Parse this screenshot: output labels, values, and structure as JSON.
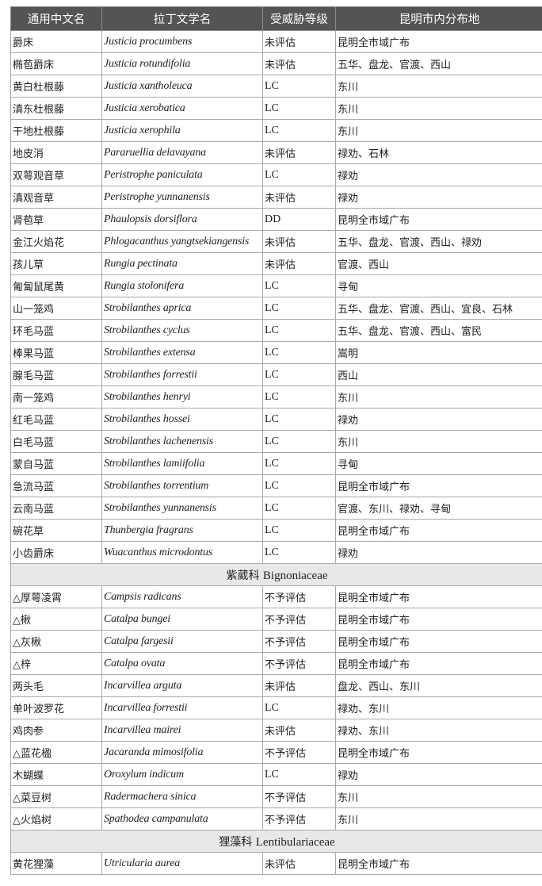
{
  "header": [
    "通用中文名",
    "拉丁文学名",
    "受威胁等级",
    "昆明市内分布地"
  ],
  "colors": {
    "header_bg": "#545454",
    "section_bg": "#e8e8e8",
    "border": "#a8a8a8"
  },
  "rows": [
    {
      "cn": "爵床",
      "latin": "Justicia procumbens",
      "status": "未评估",
      "dist": "昆明全市域广布"
    },
    {
      "cn": "椭苞爵床",
      "latin": "Justicia rotundifolia",
      "status": "未评估",
      "dist": "五华、盘龙、官渡、西山"
    },
    {
      "cn": "黄白杜根藤",
      "latin": "Justicia xantholeuca",
      "status": "LC",
      "dist": "东川"
    },
    {
      "cn": "滇东杜根藤",
      "latin": "Justicia xerobatica",
      "status": "LC",
      "dist": "东川"
    },
    {
      "cn": "干地杜根藤",
      "latin": "Justicia xerophila",
      "status": "LC",
      "dist": "东川"
    },
    {
      "cn": "地皮消",
      "latin": "Pararuellia delavayana",
      "status": "未评估",
      "dist": "禄劝、石林"
    },
    {
      "cn": "双萼观音草",
      "latin": "Peristrophe paniculata",
      "status": "LC",
      "dist": "禄劝"
    },
    {
      "cn": "滇观音草",
      "latin": "Peristrophe yunnanensis",
      "status": "未评估",
      "dist": "禄劝"
    },
    {
      "cn": "肾苞草",
      "latin": "Phaulopsis dorsiflora",
      "status": "DD",
      "dist": "昆明全市域广布"
    },
    {
      "cn": "金江火焰花",
      "latin": "Phlogacanthus yangtsekiangensis",
      "status": "未评估",
      "dist": "五华、盘龙、官渡、西山、禄劝"
    },
    {
      "cn": "孩儿草",
      "latin": "Rungia pectinata",
      "status": "未评估",
      "dist": "官渡、西山"
    },
    {
      "cn": "匍匐鼠尾黄",
      "latin": "Rungia stolonifera",
      "status": "LC",
      "dist": "寻甸"
    },
    {
      "cn": "山一笼鸡",
      "latin": "Strobilanthes aprica",
      "status": "LC",
      "dist": "五华、盘龙、官渡、西山、宜良、石林"
    },
    {
      "cn": "环毛马蓝",
      "latin": "Strobilanthes cyclus",
      "status": "LC",
      "dist": "五华、盘龙、官渡、西山、富民"
    },
    {
      "cn": "棒果马蓝",
      "latin": "Strobilanthes extensa",
      "status": "LC",
      "dist": "嵩明"
    },
    {
      "cn": "腺毛马蓝",
      "latin": "Strobilanthes forrestii",
      "status": "LC",
      "dist": "西山"
    },
    {
      "cn": "南一笼鸡",
      "latin": "Strobilanthes henryi",
      "status": "LC",
      "dist": "东川"
    },
    {
      "cn": "红毛马蓝",
      "latin": "Strobilanthes hossei",
      "status": "LC",
      "dist": "禄劝"
    },
    {
      "cn": "白毛马蓝",
      "latin": "Strobilanthes lachenensis",
      "status": "LC",
      "dist": "东川"
    },
    {
      "cn": "蒙自马蓝",
      "latin": "Strobilanthes lamiifolia",
      "status": "LC",
      "dist": "寻甸"
    },
    {
      "cn": "急流马蓝",
      "latin": "Strobilanthes torrentium",
      "status": "LC",
      "dist": "昆明全市域广布"
    },
    {
      "cn": "云南马蓝",
      "latin": "Strobilanthes yunnanensis",
      "status": "LC",
      "dist": "官渡、东川、禄劝、寻甸"
    },
    {
      "cn": "碗花草",
      "latin": "Thunbergia fragrans",
      "status": "LC",
      "dist": "昆明全市域广布"
    },
    {
      "cn": "小齿爵床",
      "latin": "Wuacanthus microdontus",
      "status": "LC",
      "dist": "禄劝"
    },
    {
      "section": "紫葳科",
      "section_latin": "Bignoniaceae"
    },
    {
      "cn": "△厚萼凌霄",
      "latin": "Campsis radicans",
      "status": "不予评估",
      "dist": "昆明全市域广布"
    },
    {
      "cn": "△楸",
      "latin": "Catalpa bungei",
      "status": "不予评估",
      "dist": "昆明全市域广布"
    },
    {
      "cn": "△灰楸",
      "latin": "Catalpa fargesii",
      "status": "不予评估",
      "dist": "昆明全市域广布"
    },
    {
      "cn": "△梓",
      "latin": "Catalpa ovata",
      "status": "不予评估",
      "dist": "昆明全市域广布"
    },
    {
      "cn": "两头毛",
      "latin": "Incarvillea arguta",
      "status": "未评估",
      "dist": "盘龙、西山、东川"
    },
    {
      "cn": "单叶波罗花",
      "latin": "Incarvillea forrestii",
      "status": "LC",
      "dist": "禄劝、东川"
    },
    {
      "cn": "鸡肉参",
      "latin": "Incarvillea mairei",
      "status": "未评估",
      "dist": "禄劝、东川"
    },
    {
      "cn": "△蓝花楹",
      "latin": "Jacaranda mimosifolia",
      "status": "不予评估",
      "dist": "昆明全市域广布"
    },
    {
      "cn": "木蝴蝶",
      "latin": "Oroxylum indicum",
      "status": "LC",
      "dist": "禄劝"
    },
    {
      "cn": "△菜豆树",
      "latin": "Radermachera sinica",
      "status": "不予评估",
      "dist": "东川"
    },
    {
      "cn": "△火焰树",
      "latin": "Spathodea campanulata",
      "status": "不予评估",
      "dist": "东川"
    },
    {
      "section": "狸藻科",
      "section_latin": "Lentibulariaceae"
    },
    {
      "cn": "黄花狸藻",
      "latin": "Utricularia aurea",
      "status": "未评估",
      "dist": "昆明全市域广布"
    }
  ]
}
